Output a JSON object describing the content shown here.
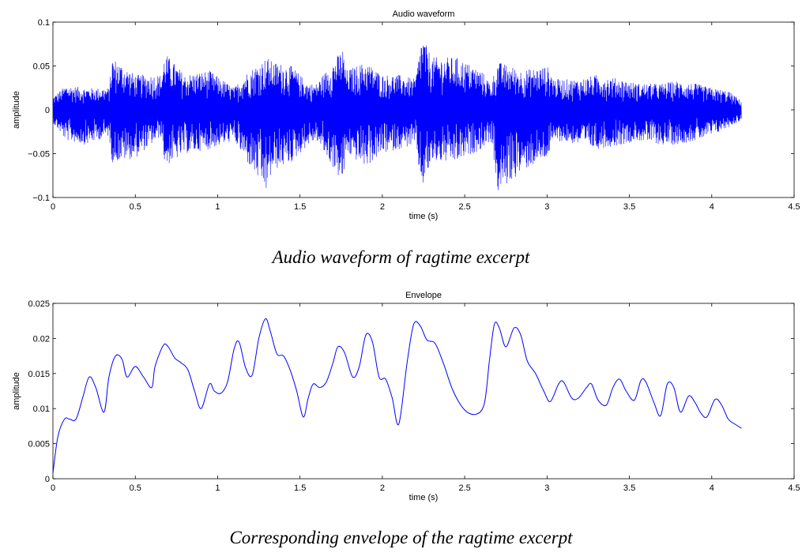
{
  "chart_data": [
    {
      "type": "line",
      "title": "Audio waveform",
      "xlabel": "time (s)",
      "ylabel": "amplitude",
      "xlim": [
        0,
        4.5
      ],
      "ylim": [
        -0.1,
        0.1
      ],
      "xticks": [
        "0",
        "0.5",
        "1",
        "1.5",
        "2",
        "2.5",
        "3",
        "3.5",
        "4",
        "4.5"
      ],
      "yticks": [
        "0.1",
        "0.05",
        "0",
        "−0.05",
        "−0.1"
      ],
      "grid": false,
      "line_color": "#0000ff",
      "duration_s": 4.18,
      "peak_amplitude_by_time": {
        "x": [
          0,
          0.08,
          0.2,
          0.34,
          0.36,
          0.5,
          0.66,
          0.68,
          0.8,
          0.95,
          1.1,
          1.16,
          1.3,
          1.33,
          1.45,
          1.55,
          1.6,
          1.76,
          1.78,
          1.9,
          2.0,
          2.1,
          2.2,
          2.24,
          2.3,
          2.45,
          2.6,
          2.66,
          2.7,
          2.85,
          3.0,
          3.05,
          3.2,
          3.3,
          3.45,
          3.55,
          3.7,
          3.78,
          3.9,
          4.0,
          4.1,
          4.18
        ],
        "upper": [
          0.015,
          0.028,
          0.025,
          0.025,
          0.06,
          0.04,
          0.04,
          0.065,
          0.04,
          0.045,
          0.025,
          0.04,
          0.06,
          0.055,
          0.05,
          0.03,
          0.03,
          0.07,
          0.045,
          0.055,
          0.04,
          0.04,
          0.035,
          0.085,
          0.06,
          0.06,
          0.045,
          0.03,
          0.055,
          0.045,
          0.05,
          0.035,
          0.035,
          0.04,
          0.035,
          0.03,
          0.03,
          0.033,
          0.03,
          0.025,
          0.022,
          0.01
        ],
        "lower": [
          -0.015,
          -0.035,
          -0.04,
          -0.03,
          -0.06,
          -0.055,
          -0.03,
          -0.065,
          -0.05,
          -0.045,
          -0.035,
          -0.055,
          -0.095,
          -0.07,
          -0.06,
          -0.04,
          -0.035,
          -0.085,
          -0.05,
          -0.065,
          -0.05,
          -0.045,
          -0.04,
          -0.09,
          -0.06,
          -0.06,
          -0.045,
          -0.035,
          -0.095,
          -0.07,
          -0.055,
          -0.035,
          -0.04,
          -0.045,
          -0.04,
          -0.035,
          -0.04,
          -0.04,
          -0.035,
          -0.03,
          -0.02,
          -0.012
        ]
      }
    },
    {
      "type": "line",
      "title": "Envelope",
      "xlabel": "time (s)",
      "ylabel": "amplitude",
      "xlim": [
        0,
        4.5
      ],
      "ylim": [
        0,
        0.025
      ],
      "xticks": [
        "0",
        "0.5",
        "1",
        "1.5",
        "2",
        "2.5",
        "3",
        "3.5",
        "4",
        "4.5"
      ],
      "yticks": [
        "0.025",
        "0.02",
        "0.015",
        "0.01",
        "0.005",
        "0"
      ],
      "grid": false,
      "line_color": "#0000ff",
      "series": [
        {
          "x": [
            0,
            0.03,
            0.07,
            0.1,
            0.14,
            0.18,
            0.22,
            0.26,
            0.31,
            0.34,
            0.38,
            0.42,
            0.45,
            0.5,
            0.55,
            0.6,
            0.62,
            0.67,
            0.7,
            0.74,
            0.78,
            0.82,
            0.86,
            0.9,
            0.95,
            0.98,
            1.02,
            1.06,
            1.1,
            1.13,
            1.17,
            1.21,
            1.25,
            1.29,
            1.32,
            1.36,
            1.4,
            1.44,
            1.48,
            1.52,
            1.55,
            1.58,
            1.62,
            1.66,
            1.7,
            1.73,
            1.77,
            1.82,
            1.86,
            1.9,
            1.94,
            1.98,
            2.02,
            2.06,
            2.1,
            2.15,
            2.19,
            2.23,
            2.27,
            2.32,
            2.37,
            2.43,
            2.5,
            2.57,
            2.62,
            2.65,
            2.68,
            2.71,
            2.75,
            2.8,
            2.84,
            2.88,
            2.93,
            2.98,
            3.02,
            3.07,
            3.1,
            3.15,
            3.19,
            3.24,
            3.27,
            3.31,
            3.36,
            3.4,
            3.44,
            3.48,
            3.53,
            3.57,
            3.6,
            3.65,
            3.69,
            3.73,
            3.77,
            3.81,
            3.86,
            3.9,
            3.93,
            3.97,
            4.02,
            4.06,
            4.1,
            4.14,
            4.18
          ],
          "y": [
            0.0008,
            0.006,
            0.0085,
            0.0085,
            0.0085,
            0.0115,
            0.0145,
            0.013,
            0.0095,
            0.0145,
            0.0175,
            0.017,
            0.0145,
            0.016,
            0.0145,
            0.013,
            0.016,
            0.019,
            0.0188,
            0.0172,
            0.0165,
            0.0155,
            0.0125,
            0.01,
            0.0135,
            0.0125,
            0.0122,
            0.0138,
            0.0185,
            0.0195,
            0.0158,
            0.0148,
            0.02,
            0.0228,
            0.021,
            0.0178,
            0.0175,
            0.0155,
            0.0125,
            0.0088,
            0.0115,
            0.0135,
            0.013,
            0.0138,
            0.0165,
            0.0188,
            0.018,
            0.0145,
            0.016,
            0.0205,
            0.0195,
            0.0145,
            0.0142,
            0.0115,
            0.0078,
            0.0165,
            0.022,
            0.0218,
            0.0198,
            0.0193,
            0.0165,
            0.0125,
            0.0098,
            0.0092,
            0.0108,
            0.0168,
            0.022,
            0.0215,
            0.0188,
            0.0215,
            0.0205,
            0.0168,
            0.015,
            0.0125,
            0.011,
            0.0135,
            0.0138,
            0.0115,
            0.0115,
            0.013,
            0.0135,
            0.0112,
            0.0105,
            0.013,
            0.0142,
            0.0125,
            0.0112,
            0.014,
            0.0138,
            0.0108,
            0.009,
            0.0135,
            0.013,
            0.0095,
            0.0118,
            0.0108,
            0.0095,
            0.0088,
            0.0113,
            0.0105,
            0.0085,
            0.0078,
            0.0072
          ]
        }
      ]
    }
  ],
  "captions": [
    "Audio waveform of ragtime excerpt",
    "Corresponding envelope of the ragtime excerpt"
  ]
}
